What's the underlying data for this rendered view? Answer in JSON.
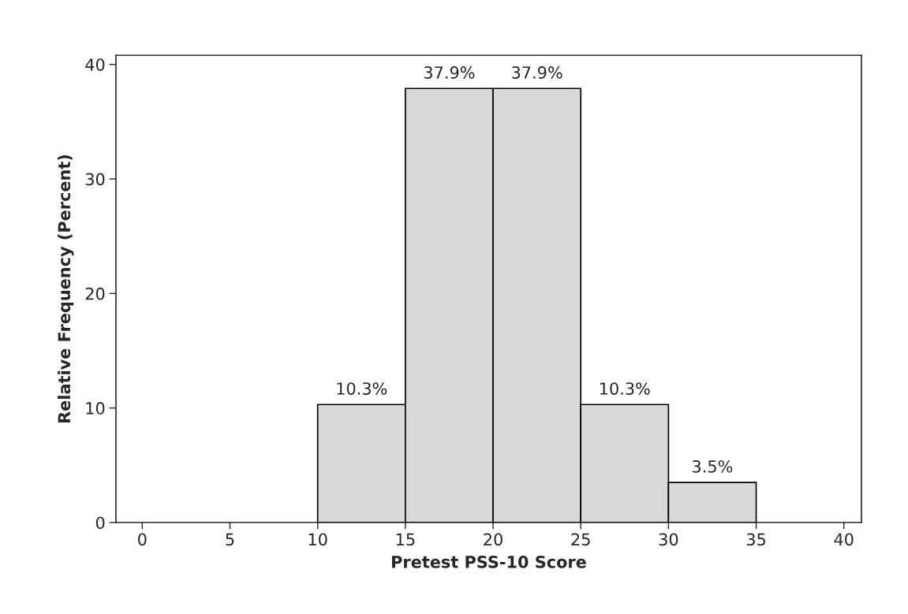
{
  "chart_data": {
    "type": "histogram",
    "xlabel": "Pretest PSS-10 Score",
    "ylabel": "Relative Frequency (Percent)",
    "bins": [
      10,
      15,
      20,
      25,
      30,
      35
    ],
    "values": [
      10.3,
      37.9,
      37.9,
      10.3,
      3.5
    ],
    "value_labels": [
      "10.3%",
      "37.9%",
      "37.9%",
      "10.3%",
      "3.5%"
    ],
    "color": "#d9d9d9",
    "xlim": [
      -1.5,
      41
    ],
    "xticks": [
      0,
      5,
      10,
      15,
      20,
      25,
      30,
      35,
      40
    ],
    "ylim": [
      0,
      40.8
    ],
    "yticks": [
      0,
      10,
      20,
      30,
      40
    ],
    "grid": false
  }
}
